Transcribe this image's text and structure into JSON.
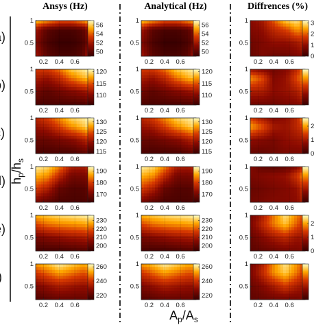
{
  "headers": {
    "ansys": "Ansys (Hz)",
    "analytical": "Analytical (Hz)",
    "differences": "Diffrences (%)"
  },
  "row_labels": [
    "a)",
    "b)",
    "c)",
    "d)",
    "e)",
    "f)"
  ],
  "axis_labels": {
    "y_main": "h",
    "y_sub1": "p",
    "y_mid": "/h",
    "y_sub2": "s",
    "x_main": "A",
    "x_sub1": "p",
    "x_mid": "/A",
    "x_sub2": "s"
  },
  "chart_data": [
    {
      "type": "heatmap",
      "panel": "a-ansys",
      "x": [
        0.1,
        0.25,
        0.4,
        0.55,
        0.7,
        0.8
      ],
      "y": [
        0.2,
        0.5,
        0.8,
        1.0
      ],
      "xticks": [
        "0.2",
        "0.4",
        "0.6"
      ],
      "yticks": [
        "0.5",
        "1"
      ],
      "colorbar": {
        "ticks": [
          "50",
          "52",
          "54",
          "56"
        ],
        "min": 49,
        "max": 57
      },
      "values": [
        [
          52,
          50,
          49.5,
          49.5,
          50,
          53
        ],
        [
          51,
          49.5,
          49,
          49,
          49.5,
          51
        ],
        [
          52,
          50,
          49.5,
          49.5,
          50,
          52
        ],
        [
          56,
          55,
          54,
          54,
          55,
          56
        ]
      ]
    },
    {
      "type": "heatmap",
      "panel": "a-analytical",
      "x": [
        0.1,
        0.25,
        0.4,
        0.55,
        0.7,
        0.8
      ],
      "y": [
        0.2,
        0.5,
        0.8,
        1.0
      ],
      "xticks": [
        "0.2",
        "0.4",
        "0.6"
      ],
      "yticks": [
        "0.5",
        "1"
      ],
      "colorbar": {
        "ticks": [
          "50",
          "52",
          "54",
          "56"
        ],
        "min": 49,
        "max": 57
      },
      "values": [
        [
          52,
          50,
          49.5,
          49.5,
          50,
          53
        ],
        [
          51,
          49.5,
          49,
          49,
          49.5,
          51
        ],
        [
          52,
          50,
          49.5,
          49.5,
          50,
          52
        ],
        [
          56,
          55,
          54,
          54,
          55,
          56
        ]
      ]
    },
    {
      "type": "heatmap",
      "panel": "a-differences",
      "x": [
        0.1,
        0.25,
        0.4,
        0.55,
        0.7,
        0.8
      ],
      "y": [
        0.2,
        0.5,
        0.8,
        1.0
      ],
      "xticks": [
        "0.2",
        "0.4",
        "0.6"
      ],
      "yticks": [
        "0.5",
        "1"
      ],
      "colorbar": {
        "ticks": [
          "0",
          "1",
          "2",
          "3"
        ],
        "min": 0,
        "max": 3.2
      },
      "values": [
        [
          0.5,
          0.8,
          0.6,
          0.6,
          0.8,
          1.0
        ],
        [
          0.6,
          0.8,
          1.0,
          1.0,
          1.2,
          1.6
        ],
        [
          0.8,
          1.0,
          1.5,
          1.8,
          2.4,
          2.0
        ],
        [
          0.9,
          1.2,
          2.0,
          2.8,
          3.0,
          2.2
        ]
      ]
    },
    {
      "type": "heatmap",
      "panel": "b-ansys",
      "x": [
        0.1,
        0.25,
        0.4,
        0.55,
        0.7,
        0.8
      ],
      "y": [
        0.2,
        0.5,
        0.8,
        1.0
      ],
      "xticks": [
        "0.2",
        "0.4",
        "0.6"
      ],
      "yticks": [
        "0.5",
        "1"
      ],
      "colorbar": {
        "ticks": [
          "110",
          "115",
          "120"
        ],
        "min": 106,
        "max": 121
      },
      "values": [
        [
          107,
          107,
          107,
          107,
          107,
          108
        ],
        [
          109,
          108,
          109,
          110,
          111,
          112
        ],
        [
          112,
          111,
          113,
          116,
          118,
          119
        ],
        [
          114,
          114,
          116,
          119,
          120,
          121
        ]
      ]
    },
    {
      "type": "heatmap",
      "panel": "b-analytical",
      "x": [
        0.1,
        0.25,
        0.4,
        0.55,
        0.7,
        0.8
      ],
      "y": [
        0.2,
        0.5,
        0.8,
        1.0
      ],
      "xticks": [
        "0.2",
        "0.4",
        "0.6"
      ],
      "yticks": [
        "0.5",
        "1"
      ],
      "colorbar": {
        "ticks": [
          "110",
          "115",
          "120"
        ],
        "min": 106,
        "max": 121
      },
      "values": [
        [
          107,
          107,
          107,
          107,
          107,
          108
        ],
        [
          109,
          108,
          109,
          110,
          111,
          112
        ],
        [
          112,
          111,
          113,
          116,
          118,
          119
        ],
        [
          114,
          114,
          116,
          119,
          120,
          121
        ]
      ]
    },
    {
      "type": "heatmap",
      "panel": "b-differences",
      "x": [
        0.1,
        0.25,
        0.4,
        0.55,
        0.7,
        0.8
      ],
      "y": [
        0.2,
        0.5,
        0.8,
        1.0
      ],
      "xticks": [
        "0.2",
        "0.4",
        "0.6"
      ],
      "yticks": [
        "0.5",
        "1"
      ],
      "colorbar": {
        "ticks": [],
        "min": 0,
        "max": 3
      },
      "values": [
        [
          0.6,
          0.6,
          0.6,
          0.7,
          0.8,
          1.0
        ],
        [
          1.2,
          1.2,
          0.9,
          1.0,
          1.2,
          1.8
        ],
        [
          2.2,
          1.8,
          0.8,
          1.0,
          1.8,
          2.2
        ],
        [
          1.0,
          0.8,
          0.6,
          0.8,
          1.4,
          2.4
        ]
      ]
    },
    {
      "type": "heatmap",
      "panel": "c-ansys",
      "x": [
        0.1,
        0.25,
        0.4,
        0.55,
        0.7,
        0.8
      ],
      "y": [
        0.2,
        0.5,
        0.8,
        1.0
      ],
      "xticks": [
        "0.2",
        "0.4",
        "0.6"
      ],
      "yticks": [
        "0.5",
        "1"
      ],
      "colorbar": {
        "ticks": [
          "115",
          "120",
          "125",
          "130"
        ],
        "min": 114,
        "max": 132
      },
      "values": [
        [
          115,
          115,
          115,
          115,
          116,
          117
        ],
        [
          117,
          117,
          118,
          119,
          121,
          123
        ],
        [
          120,
          121,
          124,
          127,
          129,
          131
        ],
        [
          122,
          124,
          127,
          130,
          131,
          132
        ]
      ]
    },
    {
      "type": "heatmap",
      "panel": "c-analytical",
      "x": [
        0.1,
        0.25,
        0.4,
        0.55,
        0.7,
        0.8
      ],
      "y": [
        0.2,
        0.5,
        0.8,
        1.0
      ],
      "xticks": [
        "0.2",
        "0.4",
        "0.6"
      ],
      "yticks": [
        "0.5",
        "1"
      ],
      "colorbar": {
        "ticks": [
          "115",
          "120",
          "125",
          "130"
        ],
        "min": 114,
        "max": 132
      },
      "values": [
        [
          115,
          115,
          115,
          115,
          116,
          117
        ],
        [
          117,
          117,
          118,
          119,
          121,
          123
        ],
        [
          120,
          121,
          124,
          127,
          129,
          131
        ],
        [
          122,
          124,
          127,
          130,
          131,
          132
        ]
      ]
    },
    {
      "type": "heatmap",
      "panel": "c-differences",
      "x": [
        0.1,
        0.25,
        0.4,
        0.55,
        0.7,
        0.8
      ],
      "y": [
        0.2,
        0.5,
        0.8,
        1.0
      ],
      "xticks": [
        "0.2",
        "0.4",
        "0.6"
      ],
      "yticks": [
        "0.5",
        "1"
      ],
      "colorbar": {
        "ticks": [
          "0",
          "1",
          "2"
        ],
        "min": 0,
        "max": 2.6
      },
      "values": [
        [
          0.4,
          0.4,
          0.5,
          0.6,
          0.6,
          0.7
        ],
        [
          0.8,
          0.7,
          0.6,
          0.8,
          0.9,
          1.0
        ],
        [
          2.0,
          1.6,
          1.0,
          0.9,
          1.2,
          1.6
        ],
        [
          1.4,
          1.0,
          0.7,
          0.8,
          1.2,
          2.2
        ]
      ]
    },
    {
      "type": "heatmap",
      "panel": "d-ansys",
      "x": [
        0.1,
        0.25,
        0.4,
        0.55,
        0.7,
        0.8
      ],
      "y": [
        0.2,
        0.5,
        0.8,
        1.0
      ],
      "xticks": [
        "0.2",
        "0.4",
        "0.6"
      ],
      "yticks": [
        "0.5",
        "1"
      ],
      "colorbar": {
        "ticks": [
          "170",
          "180",
          "190"
        ],
        "min": 163,
        "max": 194
      },
      "values": [
        [
          170,
          167,
          165,
          165,
          165,
          166
        ],
        [
          180,
          176,
          168,
          166,
          166,
          168
        ],
        [
          188,
          186,
          178,
          170,
          170,
          172
        ],
        [
          193,
          191,
          185,
          176,
          175,
          178
        ]
      ]
    },
    {
      "type": "heatmap",
      "panel": "d-analytical",
      "x": [
        0.1,
        0.25,
        0.4,
        0.55,
        0.7,
        0.8
      ],
      "y": [
        0.2,
        0.5,
        0.8,
        1.0
      ],
      "xticks": [
        "0.2",
        "0.4",
        "0.6"
      ],
      "yticks": [
        "0.5",
        "1"
      ],
      "colorbar": {
        "ticks": [
          "170",
          "180",
          "190"
        ],
        "min": 163,
        "max": 194
      },
      "values": [
        [
          170,
          167,
          165,
          165,
          165,
          166
        ],
        [
          180,
          176,
          168,
          166,
          166,
          168
        ],
        [
          188,
          186,
          178,
          170,
          170,
          172
        ],
        [
          193,
          191,
          185,
          176,
          175,
          178
        ]
      ]
    },
    {
      "type": "heatmap",
      "panel": "d-differences",
      "x": [
        0.1,
        0.25,
        0.4,
        0.55,
        0.7,
        0.8
      ],
      "y": [
        0.2,
        0.5,
        0.8,
        1.0
      ],
      "xticks": [
        "0.2",
        "0.4",
        "0.6"
      ],
      "yticks": [
        "0.5",
        "1"
      ],
      "colorbar": {
        "ticks": [],
        "min": 0,
        "max": 3
      },
      "values": [
        [
          0.6,
          0.7,
          0.8,
          0.8,
          0.9,
          1.4
        ],
        [
          0.5,
          0.6,
          0.7,
          0.8,
          1.0,
          1.8
        ],
        [
          0.7,
          0.8,
          0.9,
          1.0,
          1.6,
          2.4
        ],
        [
          0.8,
          0.4,
          0.3,
          0.4,
          0.8,
          1.6
        ]
      ]
    },
    {
      "type": "heatmap",
      "panel": "e-ansys",
      "x": [
        0.1,
        0.25,
        0.4,
        0.55,
        0.7,
        0.8
      ],
      "y": [
        0.2,
        0.5,
        0.8,
        1.0
      ],
      "xticks": [
        "0.2",
        "0.4",
        "0.6"
      ],
      "yticks": [
        "0.5",
        "1"
      ],
      "colorbar": {
        "ticks": [
          "200",
          "210",
          "220",
          "230"
        ],
        "min": 194,
        "max": 236
      },
      "values": [
        [
          196,
          196,
          196,
          197,
          198,
          199
        ],
        [
          203,
          205,
          207,
          209,
          210,
          212
        ],
        [
          218,
          222,
          224,
          225,
          226,
          228
        ],
        [
          228,
          230,
          232,
          233,
          234,
          235
        ]
      ]
    },
    {
      "type": "heatmap",
      "panel": "e-analytical",
      "x": [
        0.1,
        0.25,
        0.4,
        0.55,
        0.7,
        0.8
      ],
      "y": [
        0.2,
        0.5,
        0.8,
        1.0
      ],
      "xticks": [
        "0.2",
        "0.4",
        "0.6"
      ],
      "yticks": [
        "0.5",
        "1"
      ],
      "colorbar": {
        "ticks": [
          "200",
          "210",
          "220",
          "230"
        ],
        "min": 194,
        "max": 236
      },
      "values": [
        [
          196,
          196,
          196,
          197,
          198,
          199
        ],
        [
          203,
          205,
          207,
          209,
          210,
          212
        ],
        [
          218,
          222,
          224,
          225,
          226,
          228
        ],
        [
          228,
          230,
          232,
          233,
          234,
          235
        ]
      ]
    },
    {
      "type": "heatmap",
      "panel": "e-differences",
      "x": [
        0.1,
        0.25,
        0.4,
        0.55,
        0.7,
        0.8
      ],
      "y": [
        0.2,
        0.5,
        0.8,
        1.0
      ],
      "xticks": [
        "0.2",
        "0.4",
        "0.6"
      ],
      "yticks": [
        "0.5",
        "1"
      ],
      "colorbar": {
        "ticks": [
          "0",
          "1",
          "2"
        ],
        "min": 0,
        "max": 2.6
      },
      "values": [
        [
          0.3,
          0.4,
          0.5,
          0.6,
          0.6,
          0.8
        ],
        [
          0.4,
          0.7,
          1.0,
          1.2,
          0.9,
          1.0
        ],
        [
          0.6,
          1.2,
          1.8,
          2.2,
          1.6,
          1.2
        ],
        [
          0.5,
          1.0,
          1.8,
          2.4,
          1.8,
          1.4
        ]
      ]
    },
    {
      "type": "heatmap",
      "panel": "f-ansys",
      "x": [
        0.1,
        0.25,
        0.4,
        0.55,
        0.7,
        0.8
      ],
      "y": [
        0.2,
        0.5,
        0.8,
        1.0
      ],
      "xticks": [
        "0.2",
        "0.4",
        "0.6"
      ],
      "yticks": [
        "0.5",
        "1"
      ],
      "colorbar": {
        "ticks": [
          "220",
          "240",
          "260"
        ],
        "min": 214,
        "max": 264
      },
      "values": [
        [
          218,
          220,
          222,
          222,
          222,
          223
        ],
        [
          226,
          230,
          234,
          232,
          230,
          231
        ],
        [
          240,
          246,
          252,
          248,
          244,
          246
        ],
        [
          252,
          256,
          262,
          258,
          254,
          256
        ]
      ]
    },
    {
      "type": "heatmap",
      "panel": "f-analytical",
      "x": [
        0.1,
        0.25,
        0.4,
        0.55,
        0.7,
        0.8
      ],
      "y": [
        0.2,
        0.5,
        0.8,
        1.0
      ],
      "xticks": [
        "0.2",
        "0.4",
        "0.6"
      ],
      "yticks": [
        "0.5",
        "1"
      ],
      "colorbar": {
        "ticks": [
          "220",
          "240",
          "260"
        ],
        "min": 214,
        "max": 264
      },
      "values": [
        [
          218,
          220,
          222,
          222,
          222,
          223
        ],
        [
          226,
          230,
          234,
          232,
          230,
          231
        ],
        [
          240,
          246,
          252,
          248,
          244,
          246
        ],
        [
          252,
          256,
          262,
          258,
          254,
          256
        ]
      ]
    },
    {
      "type": "heatmap",
      "panel": "f-differences",
      "x": [
        0.1,
        0.25,
        0.4,
        0.55,
        0.7,
        0.8
      ],
      "y": [
        0.2,
        0.5,
        0.8,
        1.0
      ],
      "xticks": [
        "0.2",
        "0.4",
        "0.6"
      ],
      "yticks": [
        "0.5",
        "1"
      ],
      "colorbar": {
        "ticks": [],
        "min": 0,
        "max": 3
      },
      "values": [
        [
          0.4,
          0.5,
          0.6,
          0.6,
          0.6,
          0.8
        ],
        [
          0.5,
          0.8,
          1.2,
          1.6,
          1.2,
          1.0
        ],
        [
          0.7,
          1.4,
          2.2,
          2.6,
          2.0,
          1.4
        ],
        [
          0.6,
          1.2,
          2.2,
          2.8,
          2.2,
          1.6
        ]
      ]
    }
  ]
}
